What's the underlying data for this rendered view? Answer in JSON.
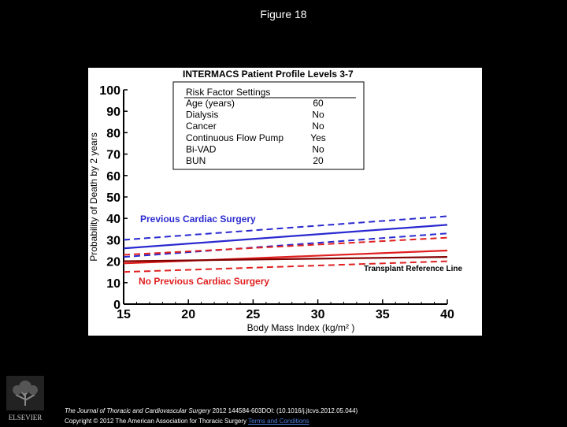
{
  "slide": {
    "title": "Figure 18"
  },
  "footer": {
    "journal": "The Journal of Thoracic and Cardiovascular Surgery",
    "citation": " 2012 144584-603DOI: (10.1016/j.jtcvs.2012.05.044)",
    "copyright": "Copyright © 2012 The American Association for Thoracic Surgery",
    "link_text": "Terms and Conditions"
  },
  "logo": {
    "text": "ELSEVIER"
  },
  "chart_data": {
    "type": "line",
    "title": "INTERMACS Patient Profile Levels 3-7",
    "xlabel": "Body Mass Index (kg/m² )",
    "ylabel": "Probability of Death by 2 years",
    "xlim": [
      15,
      40
    ],
    "ylim": [
      0,
      100
    ],
    "xticks": [
      15,
      20,
      25,
      30,
      35,
      40
    ],
    "yticks": [
      0,
      10,
      20,
      30,
      40,
      50,
      60,
      70,
      80,
      90,
      100
    ],
    "x": [
      15,
      40
    ],
    "series": [
      {
        "name": "Previous Cardiac Surgery upper CL",
        "color": "#2a2ad0",
        "style": "dashed",
        "values": [
          30,
          41
        ]
      },
      {
        "name": "Previous Cardiac Surgery",
        "color": "#2a2ad0",
        "style": "solid",
        "values": [
          26,
          37
        ]
      },
      {
        "name": "Previous Cardiac Surgery lower CL",
        "color": "#2a2ad0",
        "style": "dashed",
        "values": [
          22,
          33
        ]
      },
      {
        "name": "No Previous Cardiac Surgery upper CL",
        "color": "#e02020",
        "style": "dashed",
        "values": [
          23,
          31
        ]
      },
      {
        "name": "No Previous Cardiac Surgery",
        "color": "#e02020",
        "style": "solid",
        "values": [
          19,
          25
        ]
      },
      {
        "name": "No Previous Cardiac Surgery lower CL",
        "color": "#e02020",
        "style": "dashed",
        "values": [
          15,
          20
        ]
      },
      {
        "name": "Transplant Reference Line",
        "color": "#800000",
        "style": "solid",
        "values": [
          20,
          22
        ]
      }
    ],
    "annotations": {
      "previous": "Previous Cardiac Surgery",
      "no_previous": "No Previous Cardiac Surgery",
      "reference": "Transplant Reference Line"
    },
    "risk_table": {
      "header": "Risk Factor Settings",
      "rows": [
        {
          "factor": "Age (years)",
          "value": "60"
        },
        {
          "factor": "Dialysis",
          "value": "No"
        },
        {
          "factor": "Cancer",
          "value": "No"
        },
        {
          "factor": "Continuous Flow Pump",
          "value": "Yes"
        },
        {
          "factor": "Bi-VAD",
          "value": "No"
        },
        {
          "factor": "BUN",
          "value": "20"
        }
      ]
    }
  }
}
